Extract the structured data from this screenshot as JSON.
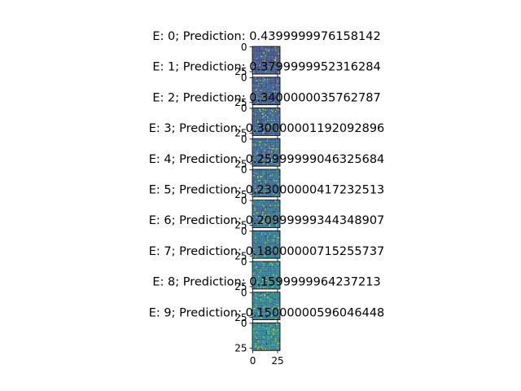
{
  "chart_data": {
    "type": "heatmap",
    "colormap": "viridis",
    "frame_color": "#000000",
    "panels": [
      {
        "title": "E: 0; Prediction: 0.4399999976158142",
        "prediction": 0.4399999976158142,
        "yticks": [
          "0",
          "25"
        ]
      },
      {
        "title": "E: 1; Prediction: 0.3799999952316284",
        "prediction": 0.3799999952316284,
        "yticks": [
          "0",
          "25"
        ]
      },
      {
        "title": "E: 2; Prediction: 0.3400000035762787",
        "prediction": 0.3400000035762787,
        "yticks": [
          "0",
          "25"
        ]
      },
      {
        "title": "E: 3; Prediction: 0.30000001192092896",
        "prediction": 0.30000001192092896,
        "yticks": [
          "0",
          "25"
        ]
      },
      {
        "title": "E: 4; Prediction: 0.25999999046325684",
        "prediction": 0.25999999046325684,
        "yticks": [
          "0",
          "25"
        ]
      },
      {
        "title": "E: 5; Prediction: 0.23000000417232513",
        "prediction": 0.23000000417232513,
        "yticks": [
          "0",
          "25"
        ]
      },
      {
        "title": "E: 6; Prediction: 0.20999999344348907",
        "prediction": 0.20999999344348907,
        "yticks": [
          "0",
          "25"
        ]
      },
      {
        "title": "E: 7; Prediction: 0.18000000715255737",
        "prediction": 0.18000000715255737,
        "yticks": [
          "0",
          "25"
        ]
      },
      {
        "title": "E: 8; Prediction: 0.1599999964237213",
        "prediction": 0.1599999964237213,
        "yticks": [
          "0",
          "25"
        ]
      },
      {
        "title": "E: 9; Prediction: 0.15000000596046448",
        "prediction": 0.15000000596046448,
        "yticks": [
          "0",
          "25"
        ],
        "xticks": [
          "0",
          "25"
        ]
      }
    ],
    "xticks": [
      "0",
      "25"
    ]
  }
}
